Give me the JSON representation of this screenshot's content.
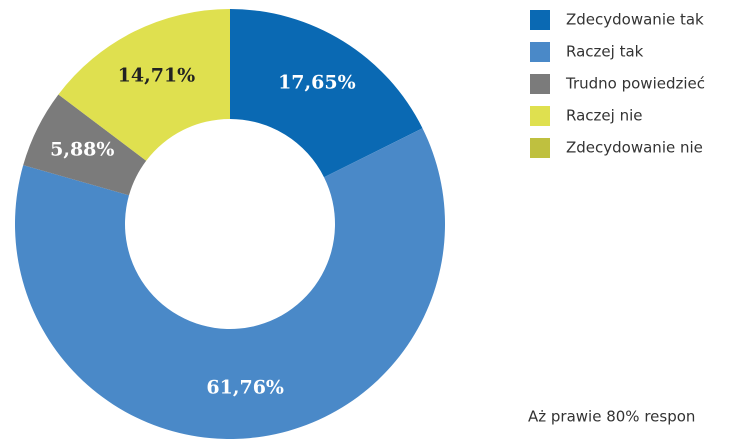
{
  "chart_data": {
    "type": "pie",
    "categories": [
      "Zdecydowanie tak",
      "Raczej tak",
      "Trudno powiedzieć",
      "Raczej nie",
      "Zdecydowanie nie"
    ],
    "values": [
      17.65,
      61.76,
      5.88,
      14.71,
      0
    ],
    "value_labels": [
      "17,65%",
      "61,76%",
      "5,88%",
      "14,71%",
      null
    ],
    "colors": [
      "#0a69b3",
      "#4a89c8",
      "#7b7b7b",
      "#dfe04f",
      "#bfc03f"
    ],
    "annotation": "Aż prawie 80% respon"
  }
}
